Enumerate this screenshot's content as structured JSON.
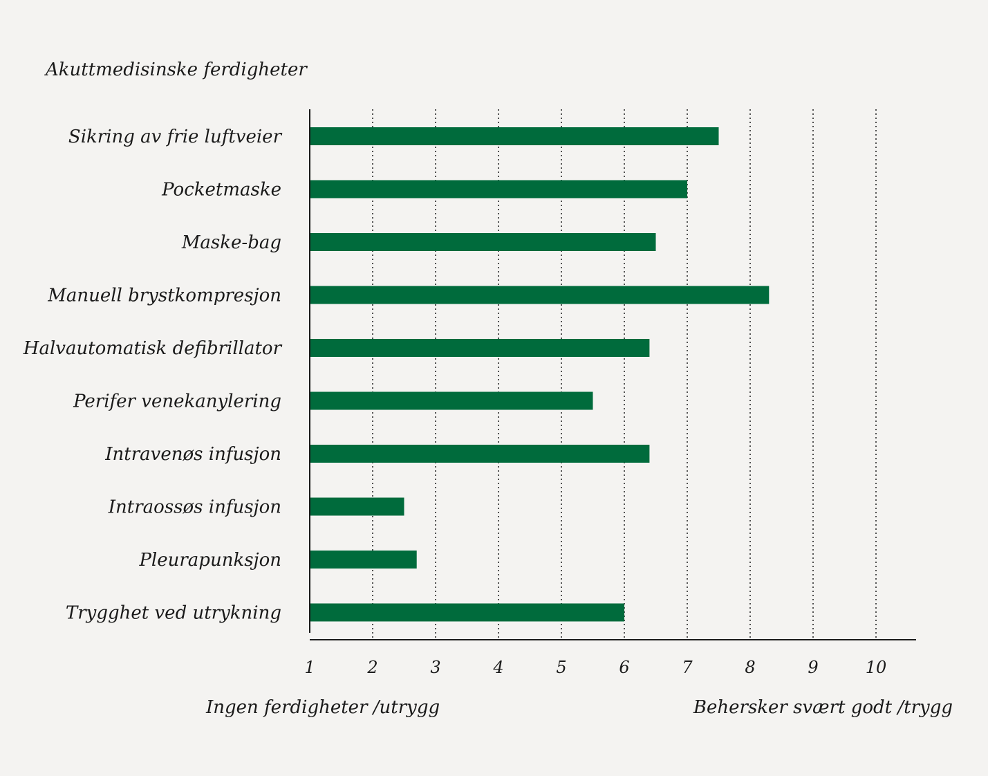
{
  "chart_data": {
    "type": "bar",
    "orientation": "horizontal",
    "title": "Akuttmedisinske ferdigheter",
    "categories": [
      "Sikring av frie luftveier",
      "Pocketmaske",
      "Maske-bag",
      "Manuell brystkompresjon",
      "Halvautomatisk defibrillator",
      "Perifer venekanylering",
      "Intravenøs infusjon",
      "Intraossøs infusjon",
      "Pleurapunksjon",
      "Trygghet ved utrykning"
    ],
    "values": [
      7.5,
      7.0,
      6.5,
      8.3,
      6.4,
      5.5,
      6.4,
      2.5,
      2.7,
      6.0
    ],
    "xlim": [
      1,
      10
    ],
    "xticks": [
      "1",
      "2",
      "3",
      "4",
      "5",
      "6",
      "7",
      "8",
      "9",
      "10"
    ],
    "xlabel_left": "Ingen ferdigheter /utrygg",
    "xlabel_right": "Behersker svært godt /trygg",
    "grid": "vertical dotted",
    "bar_color": "#006b3c"
  }
}
